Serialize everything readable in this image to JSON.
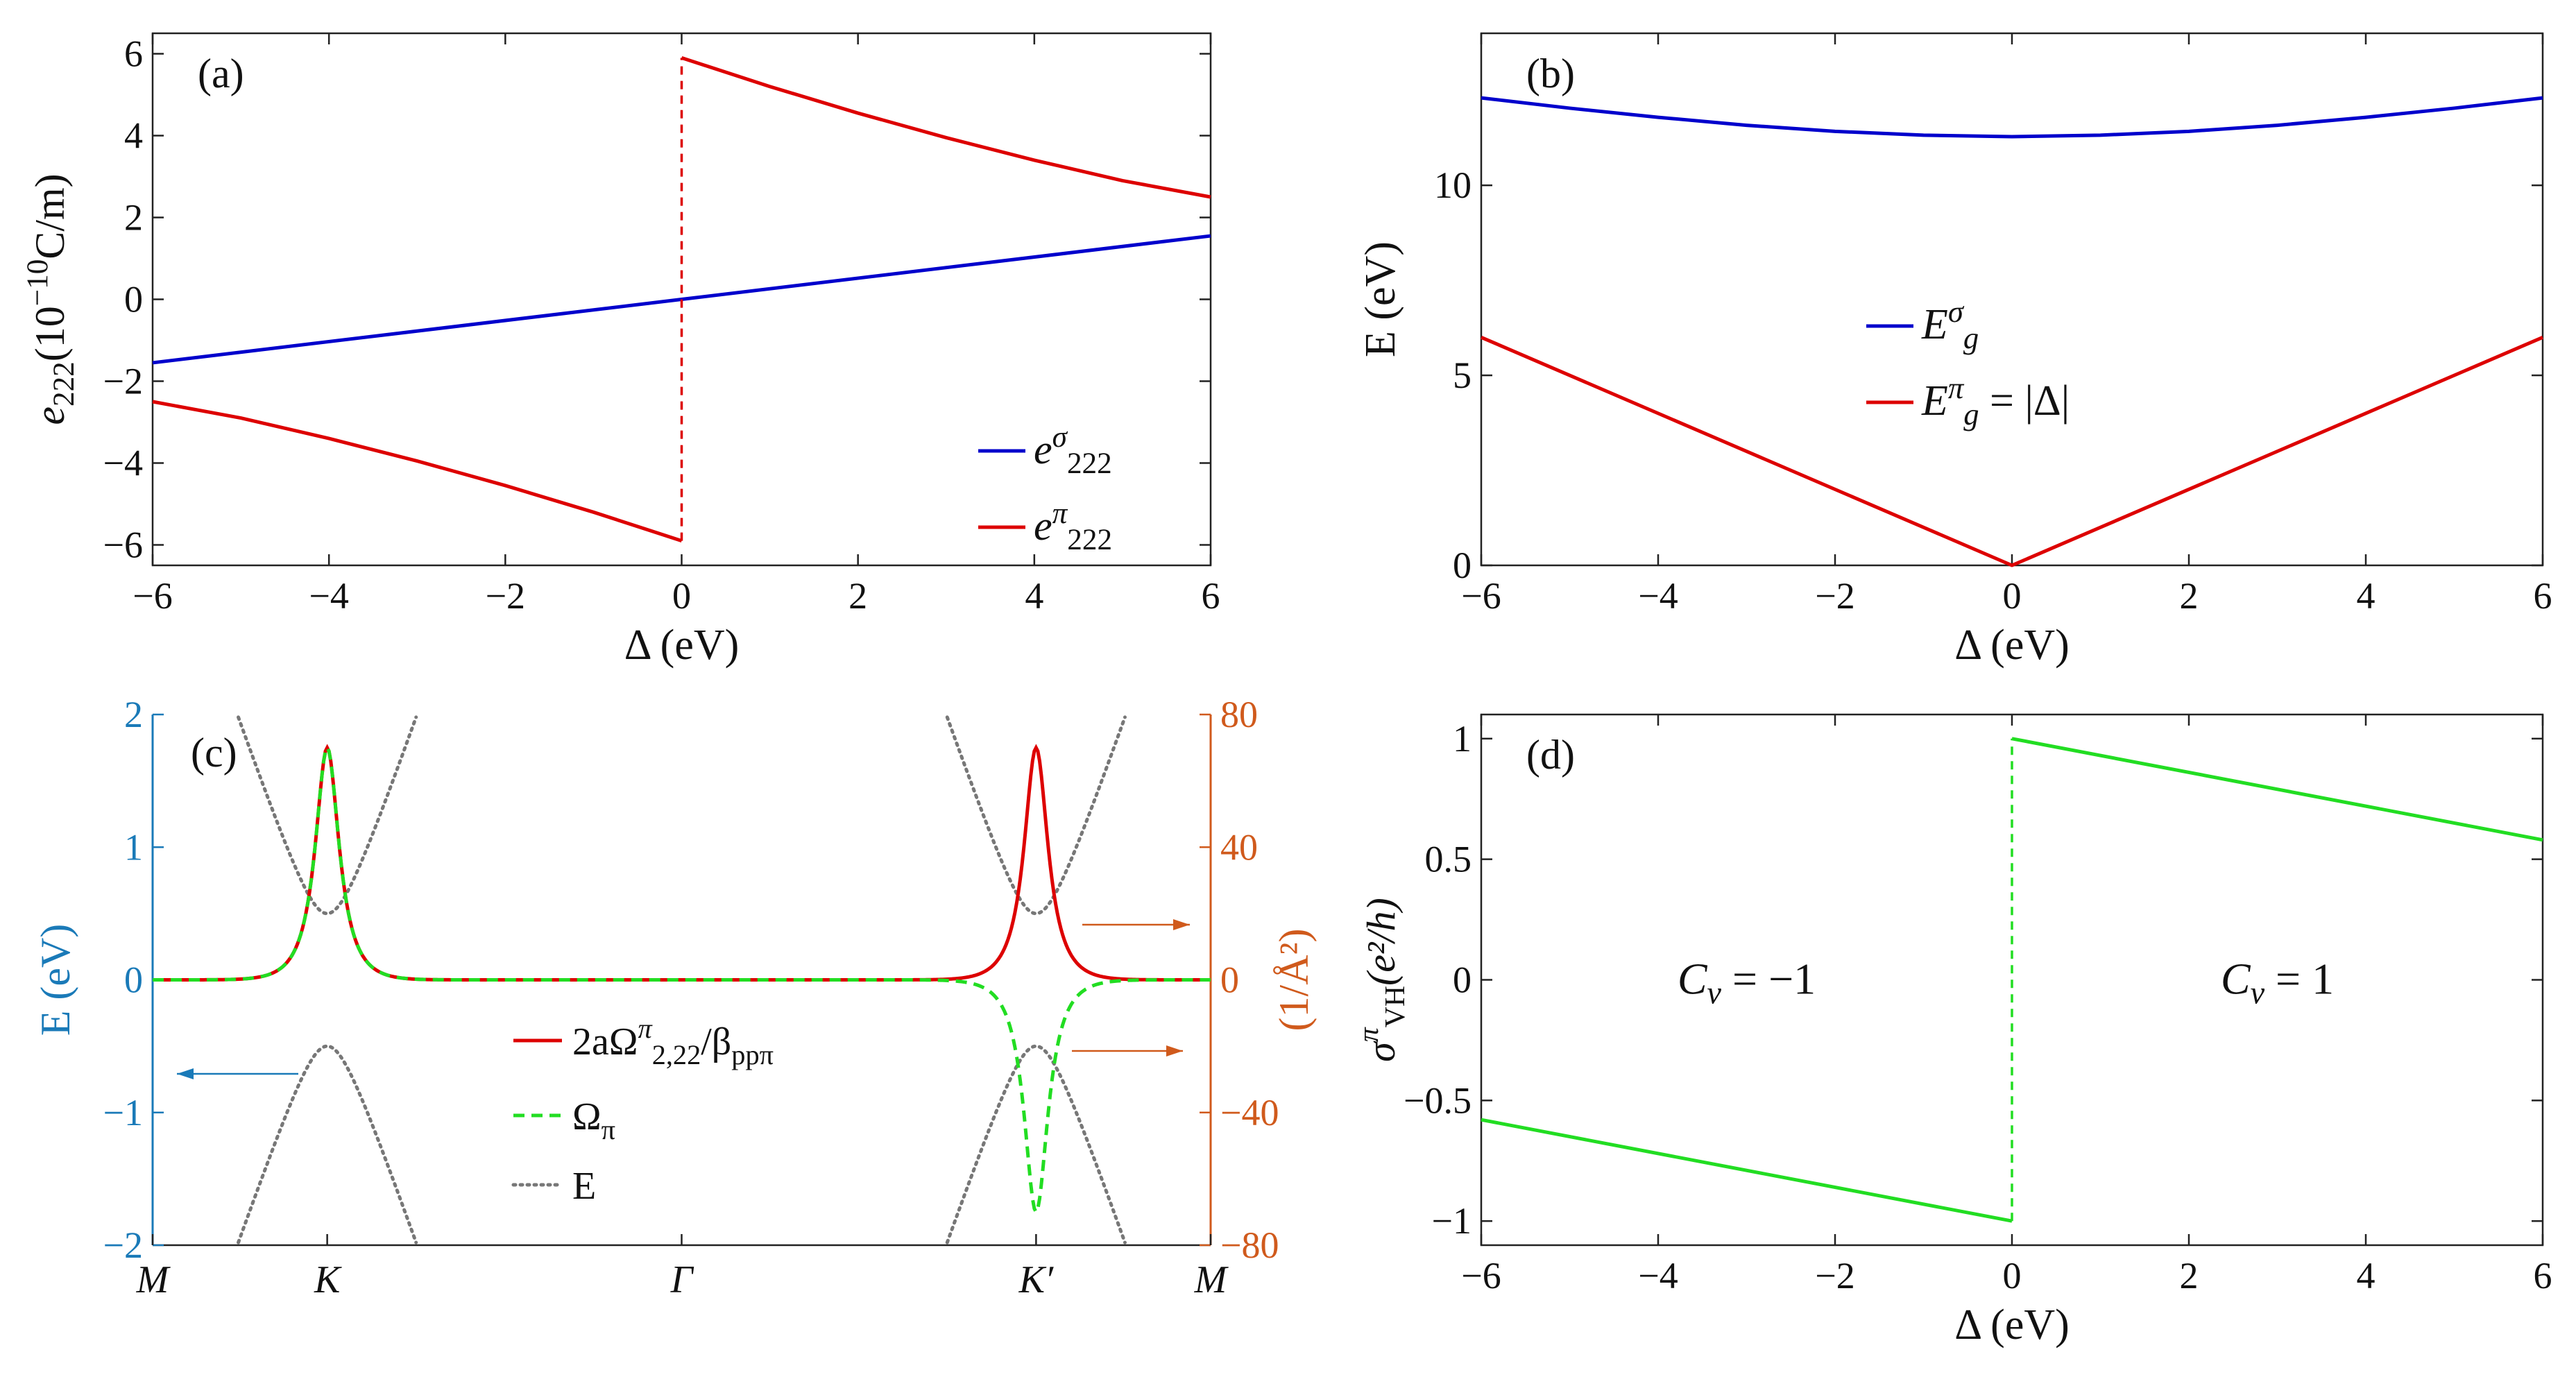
{
  "colors": {
    "blue": "#0000cc",
    "red": "#dd0000",
    "green": "#22dd22",
    "gray": "#777777",
    "cyan_axis": "#1a7ab8",
    "orange_axis": "#d05a1c",
    "axis": "#222222"
  },
  "chart_data": [
    {
      "id": "a",
      "type": "line",
      "panel_label": "(a)",
      "xlabel": "Δ (eV)",
      "ylabel": "e",
      "ylabel_sub": "222",
      "ylabel_rest": "(10",
      "ylabel_sup": "−10",
      "ylabel_unit": "C/m)",
      "xlim": [
        -6,
        6
      ],
      "ylim": [
        -6.5,
        6.5
      ],
      "xticks": [
        -6,
        -4,
        -2,
        0,
        2,
        4,
        6
      ],
      "xtick_labels": [
        "−6",
        "−4",
        "−2",
        "0",
        "2",
        "4",
        "6"
      ],
      "yticks": [
        -6,
        -4,
        -2,
        0,
        2,
        4,
        6
      ],
      "ytick_labels": [
        "−6",
        "−4",
        "−2",
        "0",
        "2",
        "4",
        "6"
      ],
      "series": [
        {
          "name": "e_222^σ",
          "color": "#0000cc",
          "x": [
            -6,
            0,
            6
          ],
          "y": [
            -1.55,
            0,
            1.55
          ]
        },
        {
          "name": "e_222^π",
          "color": "#dd0000",
          "x": [
            -6,
            -5,
            -4,
            -3,
            -2,
            -1,
            0
          ],
          "y": [
            -2.5,
            -2.9,
            -3.4,
            -3.95,
            -4.55,
            -5.2,
            -5.9
          ]
        },
        {
          "name": "",
          "color": "#dd0000",
          "x": [
            0,
            1,
            2,
            3,
            4,
            5,
            6
          ],
          "y": [
            5.9,
            5.2,
            4.55,
            3.95,
            3.4,
            2.9,
            2.5
          ]
        },
        {
          "name": "",
          "color": "#dd0000",
          "dash": "12,9",
          "x": [
            0,
            0
          ],
          "y": [
            -5.9,
            5.9
          ]
        }
      ],
      "legend": [
        {
          "base": "e",
          "sup": "σ",
          "sub": "222",
          "color": "#0000cc"
        },
        {
          "base": "e",
          "sup": "π",
          "sub": "222",
          "color": "#dd0000"
        }
      ],
      "legend_position": "bottom-right"
    },
    {
      "id": "b",
      "type": "line",
      "panel_label": "(b)",
      "xlabel": "Δ (eV)",
      "ylabel": "E (eV)",
      "xlim": [
        -6,
        6
      ],
      "ylim": [
        0,
        14
      ],
      "xticks": [
        -6,
        -4,
        -2,
        0,
        2,
        4,
        6
      ],
      "xtick_labels": [
        "−6",
        "−4",
        "−2",
        "0",
        "2",
        "4",
        "6"
      ],
      "yticks": [
        0,
        5,
        10
      ],
      "ytick_labels": [
        "0",
        "5",
        "10"
      ],
      "series": [
        {
          "name": "E_g^σ",
          "color": "#0000cc",
          "x": [
            -6,
            -5,
            -4,
            -3,
            -2,
            -1,
            0,
            1,
            2,
            3,
            4,
            5,
            6
          ],
          "y": [
            12.3,
            12.03,
            11.79,
            11.58,
            11.42,
            11.32,
            11.28,
            11.32,
            11.42,
            11.58,
            11.79,
            12.03,
            12.3
          ]
        },
        {
          "name": "E_g^π = |Δ|",
          "color": "#dd0000",
          "x": [
            -6,
            0,
            6
          ],
          "y": [
            6,
            0,
            6
          ]
        }
      ],
      "legend": [
        {
          "base": "E",
          "sup": "σ",
          "sub": "g",
          "rest": "",
          "color": "#0000cc"
        },
        {
          "base": "E",
          "sup": "π",
          "sub": "g",
          "rest": " = |Δ|",
          "color": "#dd0000"
        }
      ],
      "legend_position": "center"
    },
    {
      "id": "c",
      "type": "line",
      "panel_label": "(c)",
      "ylabel_left": "E (eV)",
      "ylabel_right": "(1/Å²)",
      "ylim_left": [
        -2,
        2
      ],
      "ylim_right": [
        -80,
        80
      ],
      "xlim": [
        0,
        1
      ],
      "xtick_labels": [
        "M",
        "K",
        "Γ",
        "K′",
        "M"
      ],
      "xtick_positions": [
        0,
        0.165,
        0.5,
        0.835,
        1
      ],
      "yticks_left": [
        -2,
        -1,
        0,
        1,
        2
      ],
      "ytick_labels_left": [
        "−2",
        "−1",
        "0",
        "1",
        "2"
      ],
      "yticks_right": [
        -80,
        -40,
        0,
        40,
        80
      ],
      "ytick_labels_right": [
        "−80",
        "−40",
        "0",
        "40",
        "80"
      ],
      "peaks": [
        {
          "x0": 0.165,
          "width": 0.014,
          "red": 70,
          "green": 70
        },
        {
          "x0": 0.835,
          "width": 0.014,
          "red": 70,
          "green": -70
        }
      ],
      "band_gap_half": 0.5,
      "band_curvature": 520,
      "legend": [
        {
          "label": "2aΩ",
          "sup": "π",
          "sub": "2,22",
          "rest": "/β",
          "sub2": "ppπ",
          "color": "#dd0000",
          "style": "solid"
        },
        {
          "label": "Ω",
          "sub": "π",
          "color": "#22dd22",
          "style": "dashed"
        },
        {
          "label": "E",
          "color": "#777777",
          "style": "dotted"
        }
      ]
    },
    {
      "id": "d",
      "type": "line",
      "panel_label": "(d)",
      "xlabel": "Δ (eV)",
      "ylabel": "σ",
      "ylabel_sup": "π",
      "ylabel_sub": "VH",
      "ylabel_rest": "(e²/h)",
      "xlim": [
        -6,
        6
      ],
      "ylim": [
        -1.1,
        1.1
      ],
      "xticks": [
        -6,
        -4,
        -2,
        0,
        2,
        4,
        6
      ],
      "xtick_labels": [
        "−6",
        "−4",
        "−2",
        "0",
        "2",
        "4",
        "6"
      ],
      "yticks": [
        -1,
        -0.5,
        0,
        0.5,
        1
      ],
      "ytick_labels": [
        "−1",
        "−0.5",
        "0",
        "0.5",
        "1"
      ],
      "series": [
        {
          "name": "left",
          "color": "#22dd22",
          "x": [
            -6,
            0
          ],
          "y": [
            -0.58,
            -1.0
          ]
        },
        {
          "name": "right",
          "color": "#22dd22",
          "x": [
            0,
            6
          ],
          "y": [
            1.0,
            0.58
          ]
        },
        {
          "name": "jump",
          "color": "#22dd22",
          "dash": "12,9",
          "x": [
            0,
            0
          ],
          "y": [
            -1.0,
            1.0
          ]
        }
      ],
      "annotations": [
        {
          "text": "C",
          "sub": "v",
          "rest": " = −1",
          "x": -3,
          "y": 0
        },
        {
          "text": "C",
          "sub": "v",
          "rest": " = 1",
          "x": 3,
          "y": 0
        }
      ]
    }
  ]
}
